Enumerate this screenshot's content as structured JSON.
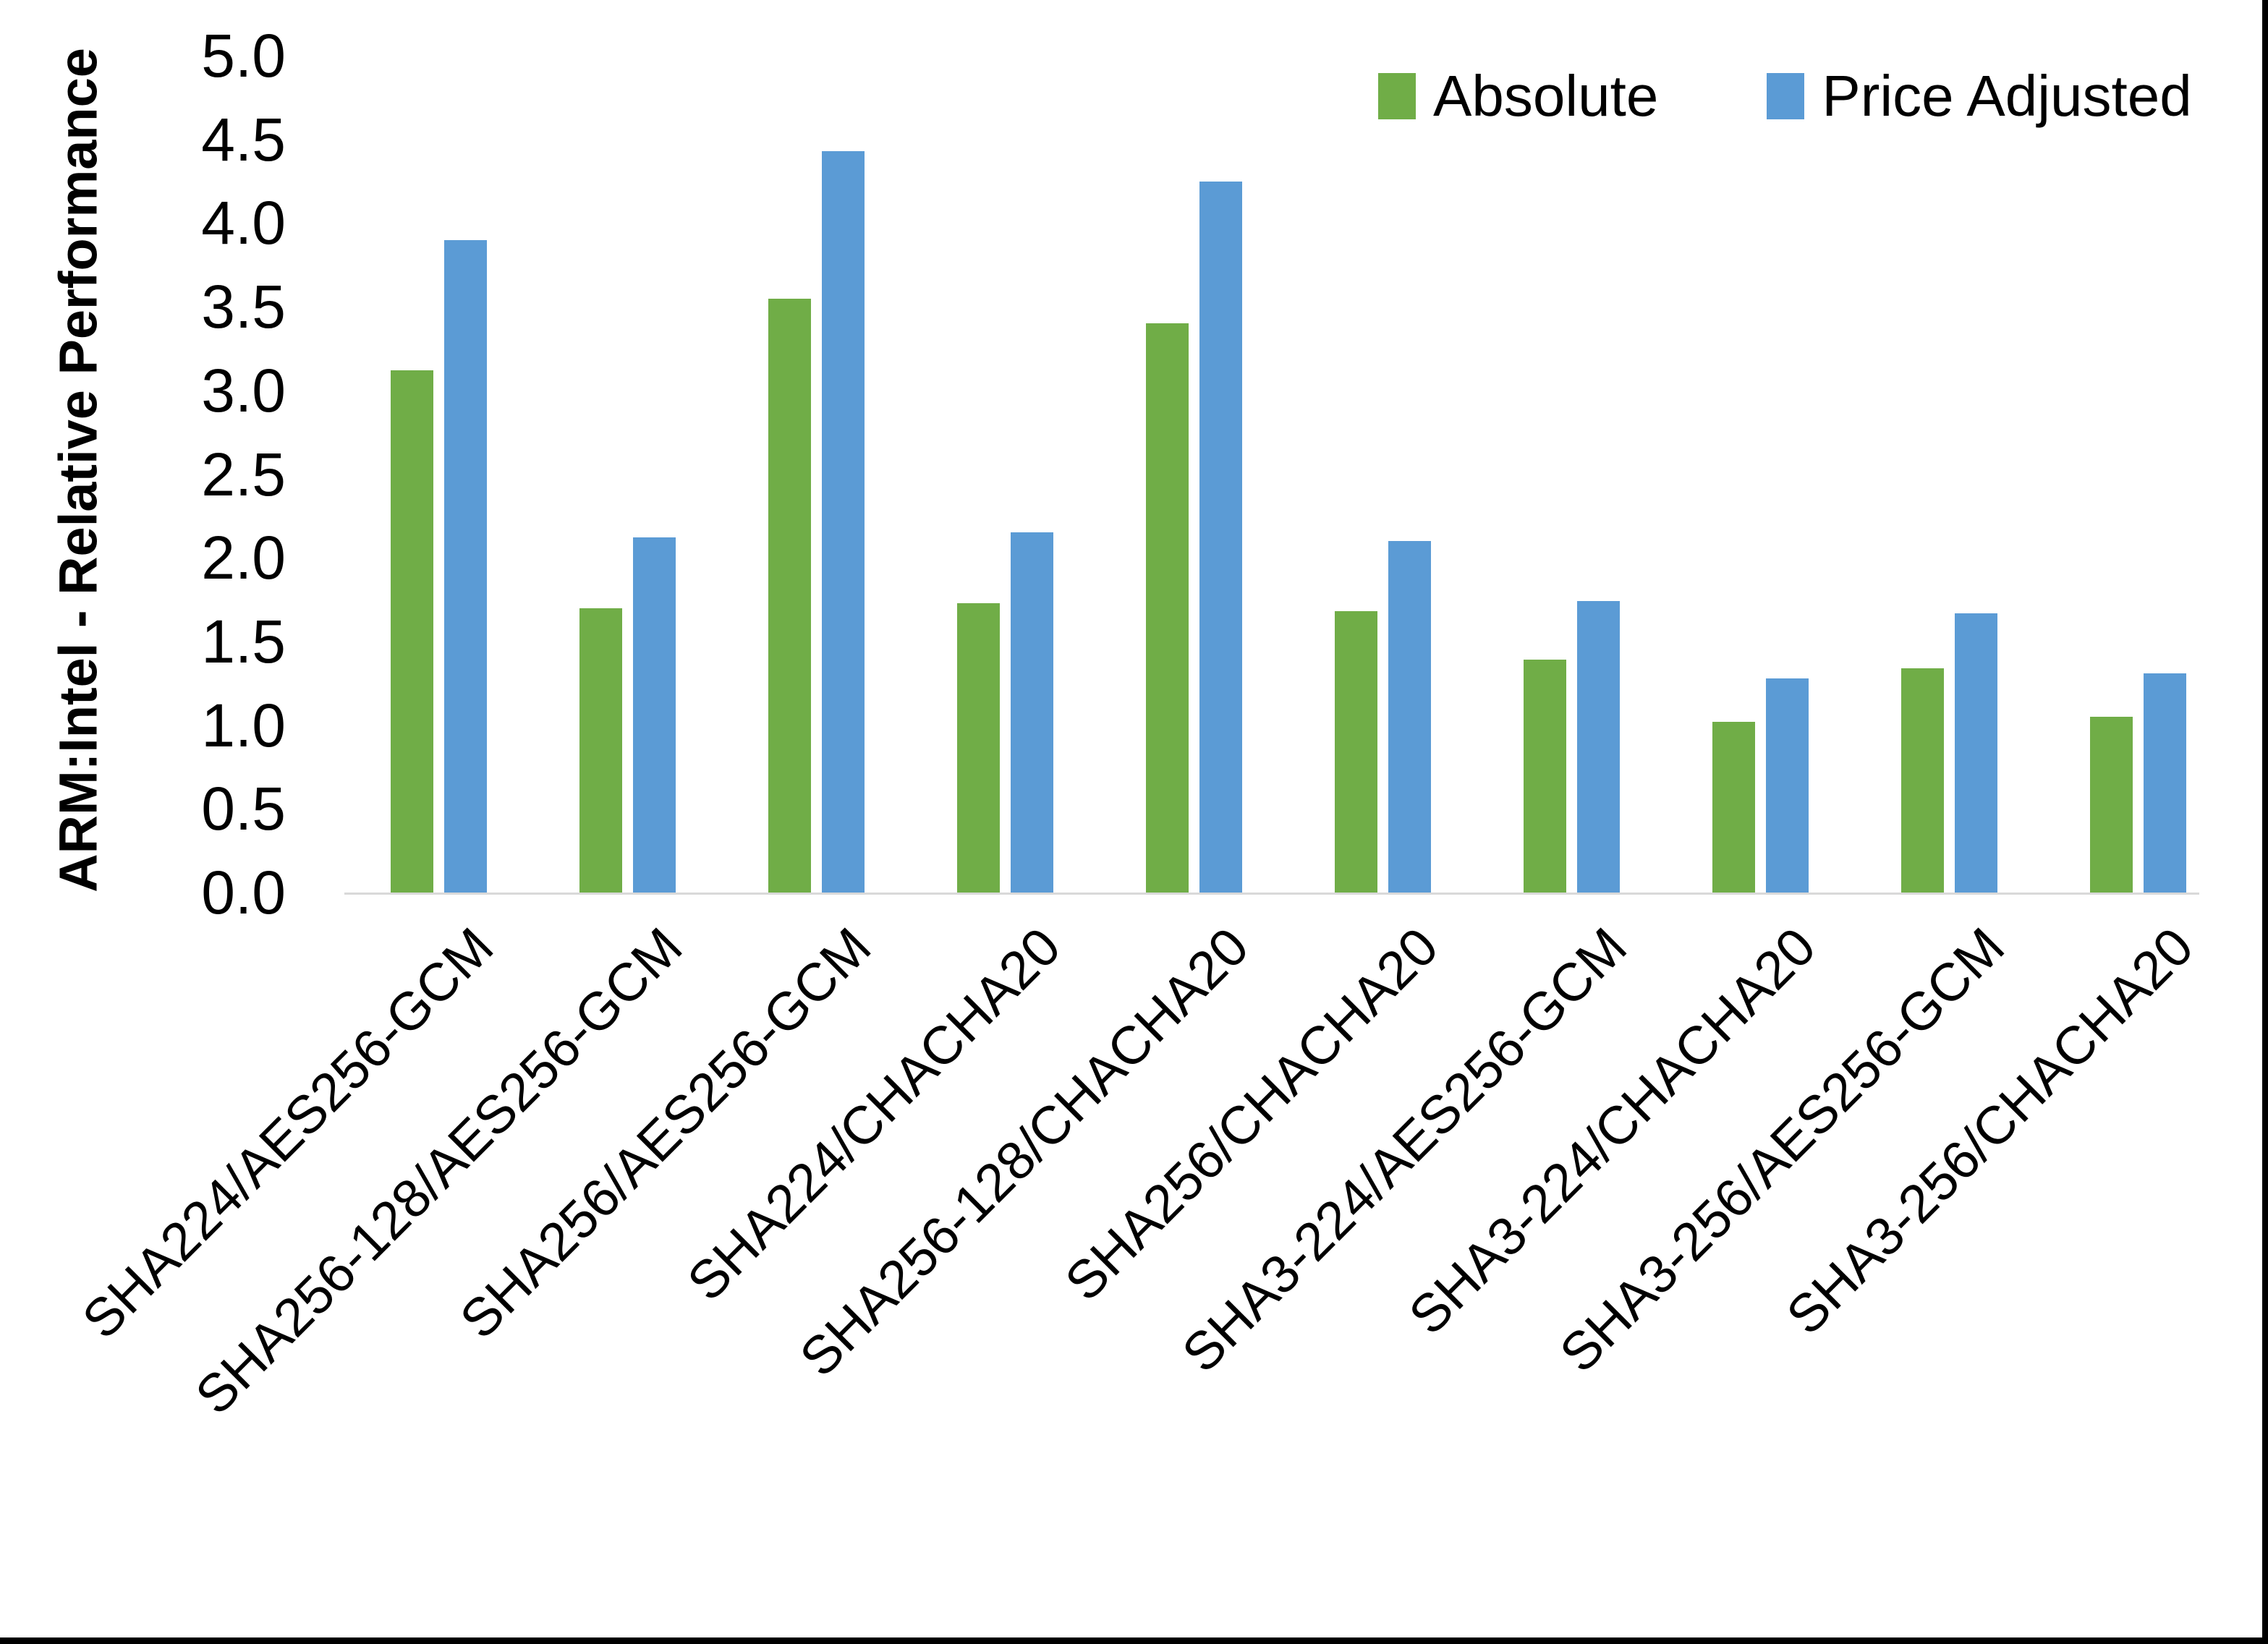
{
  "chart_data": {
    "type": "bar",
    "title": "",
    "xlabel": "",
    "ylabel": "ARM:Intel - Relative Performance",
    "ylim": [
      0.0,
      5.0
    ],
    "ytick_step": 0.5,
    "yticks": [
      "5.0",
      "4.5",
      "4.0",
      "3.5",
      "3.0",
      "2.5",
      "2.0",
      "1.5",
      "1.0",
      "0.5",
      "0.0"
    ],
    "grid": false,
    "legend_position": "top-right",
    "axis_line_color": "#d9d9d9",
    "text_color": "#000000",
    "background_color": "#ffffff",
    "categories": [
      "SHA224/AES256-GCM",
      "SHA256-128/AES256-GCM",
      "SHA256/AES256-GCM",
      "SHA224/CHACHA20",
      "SHA256-128/CHACHA20",
      "SHA256/CHACHA20",
      "SHA3-224/AES256-GCM",
      "SHA3-224/CHACHA20",
      "SHA3-256/AES256-GCM",
      "SHA3-256/CHACHA20"
    ],
    "series": [
      {
        "name": "Absolute",
        "color": "#70AD47",
        "values": [
          3.12,
          1.7,
          3.55,
          1.73,
          3.4,
          1.68,
          1.39,
          1.02,
          1.34,
          1.05
        ]
      },
      {
        "name": "Price Adjusted",
        "color": "#5B9BD5",
        "values": [
          3.9,
          2.12,
          4.43,
          2.15,
          4.25,
          2.1,
          1.74,
          1.28,
          1.67,
          1.31
        ]
      }
    ]
  }
}
